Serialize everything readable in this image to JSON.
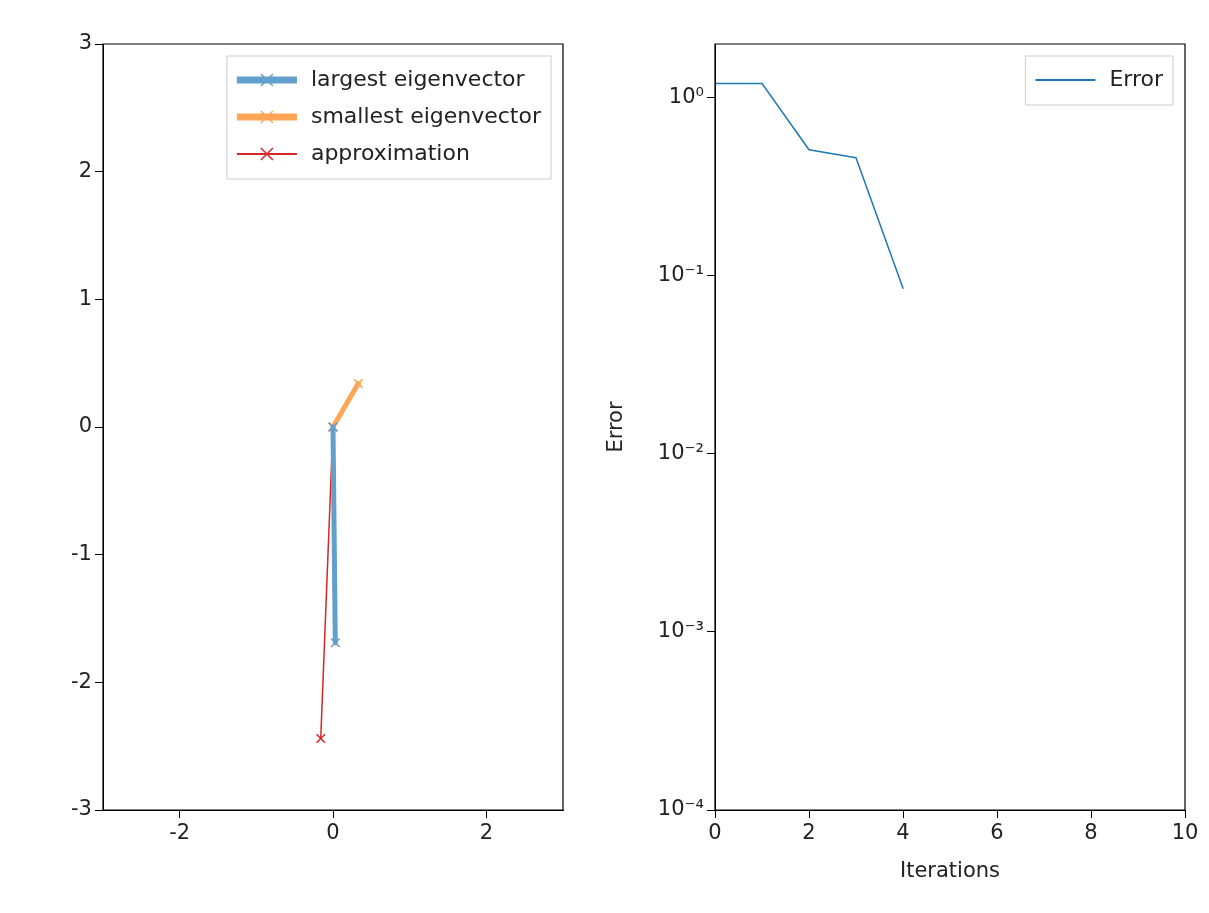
{
  "chart_data": [
    {
      "type": "line",
      "xlim": [
        -3,
        3
      ],
      "xticks": [
        -2,
        0,
        2
      ],
      "ylim": [
        -3,
        3
      ],
      "yticks": [
        -3,
        -2,
        -1,
        0,
        1,
        2,
        3
      ],
      "marker": "cross",
      "legend": "top right",
      "grid": false,
      "series": [
        {
          "name": "largest eigenvector",
          "color": "#62a0cb",
          "x": [
            0,
            0.03
          ],
          "values": [
            0,
            -1.69
          ]
        },
        {
          "name": "smallest eigenvector",
          "color": "#ffa556",
          "x": [
            0,
            0.33
          ],
          "values": [
            0,
            0.34
          ]
        },
        {
          "name": "approximation",
          "color": "#d62728",
          "x": [
            0,
            -0.16
          ],
          "values": [
            0,
            -2.44
          ]
        }
      ]
    },
    {
      "type": "line",
      "xlabel": "Iterations",
      "ylabel": "Error",
      "log": "y",
      "xlim": [
        0,
        10
      ],
      "xticks": [
        0,
        2,
        4,
        6,
        8,
        10
      ],
      "ylim": [
        0.0001,
        2
      ],
      "yticks": [
        {
          "value": 0.0001,
          "label": "10⁻⁴"
        },
        {
          "value": 0.001,
          "label": "10⁻³"
        },
        {
          "value": 0.01,
          "label": "10⁻²"
        },
        {
          "value": 0.1,
          "label": "10⁻¹"
        },
        {
          "value": 1,
          "label": "10⁰"
        }
      ],
      "legend": "top right",
      "grid": false,
      "marker": "none",
      "series": [
        {
          "name": "Error",
          "color": "#1f77b4",
          "x": [
            0,
            1,
            2,
            3,
            4
          ],
          "values": [
            1.2,
            1.2,
            0.51,
            0.46,
            0.085
          ]
        }
      ]
    }
  ]
}
